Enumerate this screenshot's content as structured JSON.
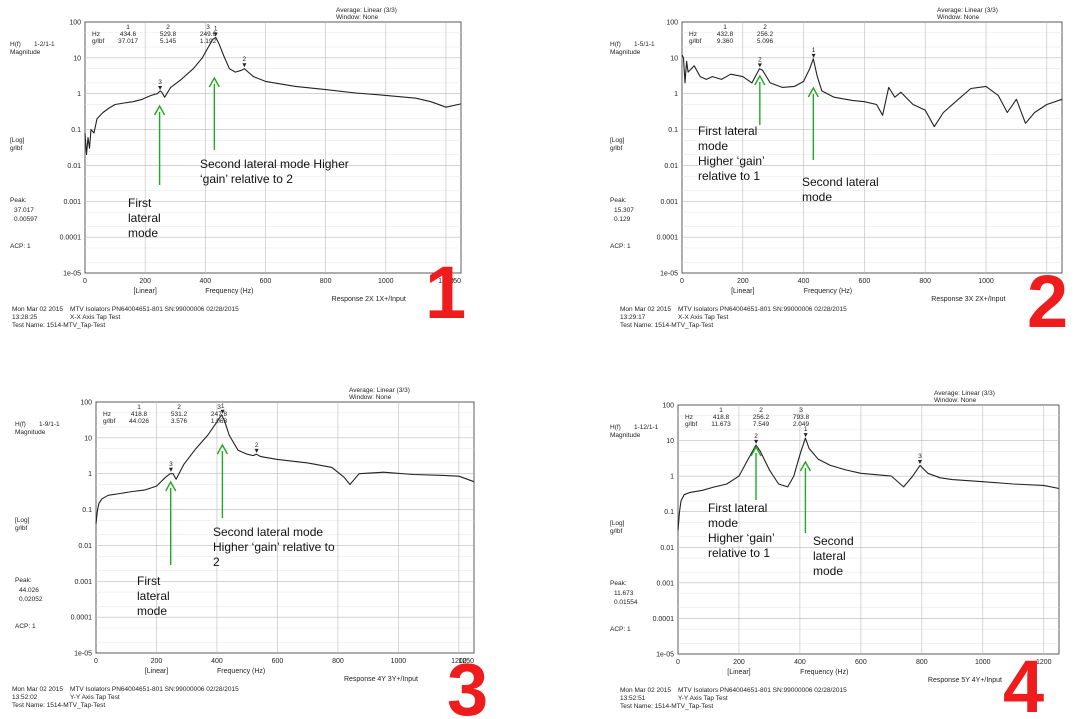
{
  "common": {
    "average_label": "Average: Linear (3/3)",
    "window_label": "Window: None",
    "y_title_line1": "H(f)",
    "y_title_line2": "Magnitude",
    "y_units_line1": "[Log]",
    "y_units_line2": "g/lbf",
    "peak_label": "Peak:",
    "acp_label": "ACP: 1",
    "x_scale_label": "[Linear]",
    "xlabel": "Frequency (Hz)",
    "table_row1": "Hz",
    "table_row2": "g/lbf",
    "date": "Mon Mar 02 2015",
    "test_name": "Test Name: 1514-MTV_Tap-Test",
    "arrow_color": "#22a822",
    "number_color": "#ee1c1c",
    "y_ticks": [
      "100",
      "10",
      "1",
      "0.1",
      "0.01",
      "0.001",
      "0.0001",
      "1e-05"
    ],
    "x_ticks": [
      "0",
      "200",
      "400",
      "600",
      "800",
      "1000",
      "1200"
    ],
    "y_scale": "log",
    "grid": true
  },
  "chart_data": [
    {
      "type": "line",
      "panel_number": "1",
      "channel": "1-2/1-1",
      "response": "Response 2X  1X+/Input",
      "isolator": "MTV Isolators PN64004651-801 SN:99000006  02/28/2015",
      "axis_test": "X-X  Axis Tap Test",
      "time": "13:28:25",
      "peak_values": [
        "37.017",
        "0.00597"
      ],
      "x_end_label": "1250",
      "xlim": [
        0,
        1250
      ],
      "ylim": [
        1e-05,
        100
      ],
      "markers": [
        {
          "id": "1",
          "hz": "434.6",
          "gain": "37.017"
        },
        {
          "id": "2",
          "hz": "529.8",
          "gain": "5.145"
        },
        {
          "id": "3",
          "hz": "249.6",
          "gain": "1.192"
        }
      ],
      "x": [
        0,
        5,
        10,
        15,
        20,
        30,
        40,
        60,
        80,
        100,
        130,
        160,
        190,
        220,
        240,
        250,
        255,
        265,
        285,
        320,
        360,
        390,
        410,
        425,
        435,
        445,
        460,
        480,
        500,
        520,
        530,
        540,
        560,
        600,
        700,
        800,
        900,
        1000,
        1100,
        1150,
        1200,
        1250
      ],
      "y": [
        0.08,
        0.02,
        0.06,
        0.03,
        0.1,
        0.08,
        0.2,
        0.3,
        0.4,
        0.5,
        0.55,
        0.6,
        0.7,
        0.9,
        1.0,
        1.2,
        1.1,
        0.8,
        1.5,
        2.5,
        5,
        10,
        20,
        33,
        37,
        25,
        12,
        5,
        4,
        4.5,
        5,
        4.2,
        3,
        2.2,
        1.6,
        1.3,
        1.05,
        0.9,
        0.75,
        0.6,
        0.42,
        0.52
      ],
      "annotations": [
        {
          "text": [
            "Second  lateral mode Higher",
            "‘gain’ relative to 2"
          ],
          "arrow_x": 430
        },
        {
          "text": [
            "First",
            "lateral",
            "mode"
          ],
          "arrow_x": 248
        }
      ]
    },
    {
      "type": "line",
      "panel_number": "2",
      "channel": "1-5/1-1",
      "response": "Response 3X  2X+/Input",
      "isolator": "MTV Isolators PN64004651-801 SN:99000006  02/28/2015",
      "axis_test": "X-X  Axis Tap Test",
      "time": "13:29:17",
      "peak_values": [
        "15.307",
        "0.129"
      ],
      "x_end_label": "",
      "xlim": [
        0,
        1250
      ],
      "ylim": [
        1e-05,
        100
      ],
      "markers": [
        {
          "id": "1",
          "hz": "432.8",
          "gain": "9.360"
        },
        {
          "id": "2",
          "hz": "256.2",
          "gain": "5.096"
        }
      ],
      "x": [
        0,
        5,
        10,
        15,
        20,
        40,
        60,
        80,
        100,
        130,
        160,
        200,
        230,
        255,
        265,
        290,
        330,
        370,
        400,
        420,
        432,
        445,
        460,
        500,
        560,
        600,
        640,
        660,
        680,
        700,
        720,
        760,
        800,
        830,
        860,
        900,
        950,
        1000,
        1040,
        1070,
        1100,
        1130,
        1160,
        1200,
        1250
      ],
      "y": [
        12,
        10,
        2,
        8,
        4,
        6,
        3,
        2.5,
        3,
        2.5,
        3.5,
        3,
        2,
        5,
        4.5,
        2,
        1.5,
        1.6,
        2.2,
        5,
        9.4,
        3,
        1.2,
        0.8,
        0.65,
        0.6,
        0.5,
        0.25,
        1.5,
        0.8,
        1.1,
        0.5,
        0.35,
        0.12,
        0.3,
        0.6,
        1.4,
        1.6,
        0.9,
        0.3,
        0.7,
        0.15,
        0.3,
        0.5,
        0.7
      ],
      "annotations": [
        {
          "text": [
            "First lateral",
            "mode",
            "Higher ‘gain’",
            "relative to 1"
          ],
          "arrow_x": 256
        },
        {
          "text": [
            "Second  lateral",
            "mode"
          ],
          "arrow_x": 432
        }
      ]
    },
    {
      "type": "line",
      "panel_number": "3",
      "channel": "1-9/1-1",
      "response": "Response 4Y  3Y+/Input",
      "isolator": "MTV Isolators PN64004651-801 SN:99000006  02/28/2015",
      "axis_test": "Y-Y  Axis Tap Test",
      "time": "13:52:02",
      "peak_values": [
        "44.026",
        "0.02052"
      ],
      "x_end_label": "1250",
      "xlim": [
        0,
        1250
      ],
      "ylim": [
        1e-05,
        100
      ],
      "markers": [
        {
          "id": "1",
          "hz": "418.8",
          "gain": "44.026"
        },
        {
          "id": "2",
          "hz": "531.2",
          "gain": "3.576"
        },
        {
          "id": "3",
          "hz": "247.8",
          "gain": "1.063"
        }
      ],
      "x": [
        0,
        5,
        10,
        20,
        40,
        80,
        120,
        160,
        200,
        230,
        245,
        255,
        265,
        290,
        330,
        370,
        400,
        415,
        425,
        440,
        470,
        500,
        520,
        530,
        545,
        600,
        700,
        780,
        820,
        840,
        870,
        950,
        1050,
        1150,
        1200,
        1250
      ],
      "y": [
        0.04,
        0.1,
        0.15,
        0.2,
        0.25,
        0.28,
        0.32,
        0.35,
        0.45,
        0.8,
        1.0,
        1.0,
        0.7,
        1.8,
        5,
        12,
        28,
        44,
        30,
        12,
        4.5,
        3.5,
        3.2,
        3.5,
        3.0,
        2.5,
        2.0,
        1.5,
        0.8,
        0.5,
        1.0,
        1.1,
        0.95,
        0.9,
        0.85,
        0.6
      ],
      "annotations": [
        {
          "text": [
            "Second  lateral mode",
            "Higher ‘gain’ relative to",
            "2"
          ],
          "arrow_x": 418
        },
        {
          "text": [
            "First",
            "lateral",
            "mode"
          ],
          "arrow_x": 247
        }
      ]
    },
    {
      "type": "line",
      "panel_number": "4",
      "channel": "1-12/1-1",
      "response": "Response 5Y  4Y+/Input",
      "isolator": "MTV Isolators PN64004651-801 SN:99000006  02/28/2015",
      "axis_test": "Y-Y  Axis Tap Test",
      "time": "13:52:51",
      "peak_values": [
        "11.673",
        "0.01554"
      ],
      "x_end_label": "",
      "xlim": [
        0,
        1250
      ],
      "ylim": [
        1e-05,
        100
      ],
      "markers": [
        {
          "id": "1",
          "hz": "418.8",
          "gain": "11.673"
        },
        {
          "id": "2",
          "hz": "256.2",
          "gain": "7.549"
        },
        {
          "id": "3",
          "hz": "793.8",
          "gain": "2.049"
        }
      ],
      "x": [
        0,
        5,
        10,
        20,
        40,
        80,
        120,
        160,
        200,
        230,
        256,
        270,
        300,
        330,
        360,
        380,
        400,
        418,
        430,
        460,
        500,
        550,
        600,
        650,
        700,
        740,
        770,
        794,
        820,
        860,
        900,
        1000,
        1100,
        1200,
        1250
      ],
      "y": [
        0.03,
        0.1,
        0.2,
        0.3,
        0.35,
        0.4,
        0.5,
        0.6,
        1.0,
        3,
        7.5,
        5,
        1.5,
        0.6,
        0.5,
        1,
        4,
        11.7,
        6,
        3,
        2,
        1.5,
        1.2,
        1.1,
        1.0,
        0.5,
        1.0,
        2.0,
        1.2,
        0.9,
        0.8,
        0.7,
        0.6,
        0.55,
        0.45
      ],
      "annotations": [
        {
          "text": [
            "First lateral",
            "mode",
            "Higher ‘gain’",
            "relative to 1"
          ],
          "arrow_x": 256
        },
        {
          "text": [
            "Second",
            "lateral",
            "mode"
          ],
          "arrow_x": 418
        }
      ]
    }
  ]
}
